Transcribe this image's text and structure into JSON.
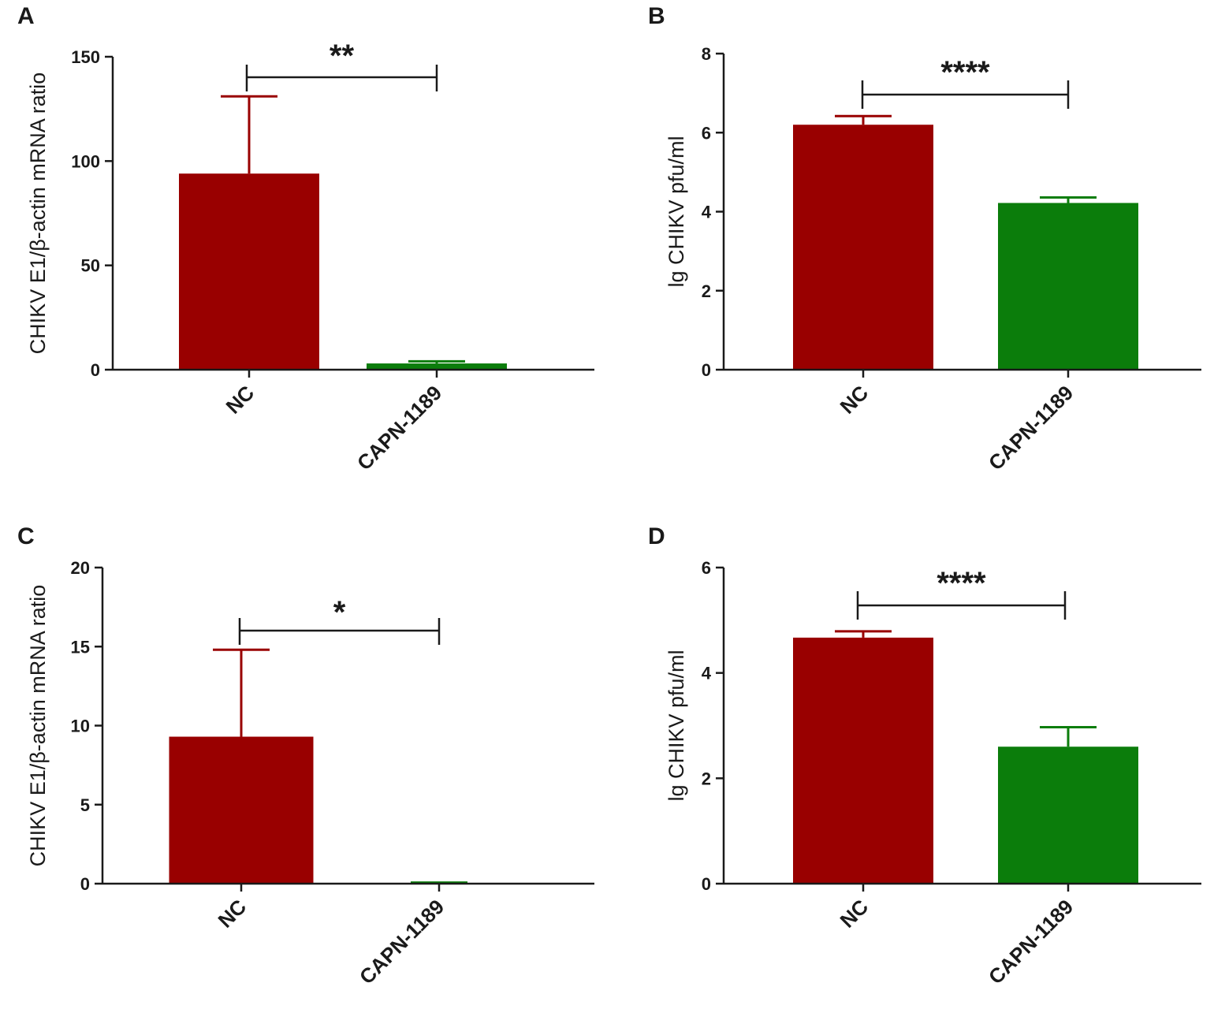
{
  "chart_data": [
    {
      "panel": "A",
      "type": "bar",
      "ylabel": "CHIKV E1/β-actin mRNA ratio",
      "xlabel": "",
      "categories": [
        "NC",
        "CAPN-1189"
      ],
      "values": [
        94,
        3
      ],
      "errors": [
        37,
        1
      ],
      "colors": [
        "#990000",
        "#0b7d0b"
      ],
      "ylim": [
        0,
        150
      ],
      "yticks": [
        0,
        50,
        100,
        150
      ],
      "significance": "**"
    },
    {
      "panel": "B",
      "type": "bar",
      "ylabel": "lg CHIKV pfu/ml",
      "xlabel": "",
      "categories": [
        "NC",
        "CAPN-1189"
      ],
      "values": [
        6.2,
        4.22
      ],
      "errors": [
        0.22,
        0.14
      ],
      "colors": [
        "#990000",
        "#0b7d0b"
      ],
      "ylim": [
        0,
        8
      ],
      "yticks": [
        0,
        2,
        4,
        6,
        8
      ],
      "significance": "****"
    },
    {
      "panel": "C",
      "type": "bar",
      "ylabel": "CHIKV E1/β-actin mRNA ratio",
      "xlabel": "",
      "categories": [
        "NC",
        "CAPN-1189"
      ],
      "values": [
        9.3,
        0.05
      ],
      "errors": [
        5.5,
        0.02
      ],
      "colors": [
        "#990000",
        "#0b7d0b"
      ],
      "ylim": [
        0,
        20
      ],
      "yticks": [
        0,
        5,
        10,
        15,
        20
      ],
      "significance": "*"
    },
    {
      "panel": "D",
      "type": "bar",
      "ylabel": "lg CHIKV pfu/ml",
      "xlabel": "",
      "categories": [
        "NC",
        "CAPN-1189"
      ],
      "values": [
        4.67,
        2.6
      ],
      "errors": [
        0.12,
        0.37
      ],
      "colors": [
        "#990000",
        "#0b7d0b"
      ],
      "ylim": [
        0,
        6
      ],
      "yticks": [
        0,
        2,
        4,
        6
      ],
      "significance": "****"
    }
  ]
}
